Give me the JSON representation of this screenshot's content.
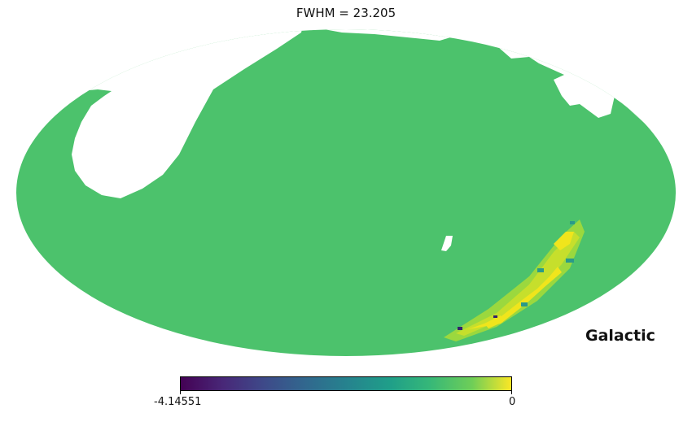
{
  "figure": {
    "title": "FWHM = 23.205",
    "coordinate_label": "Galactic"
  },
  "colorbar": {
    "colormap": "viridis",
    "min_label": "-4.14551",
    "max_label": "0",
    "min": -4.14551,
    "max": 0
  },
  "colors": {
    "background": "#4cc26c",
    "high": "#f0e51c",
    "high_mid": "#c6df2c",
    "mid": "#9bd83e",
    "teal": "#2a9a89",
    "dark": "#34226b"
  }
}
